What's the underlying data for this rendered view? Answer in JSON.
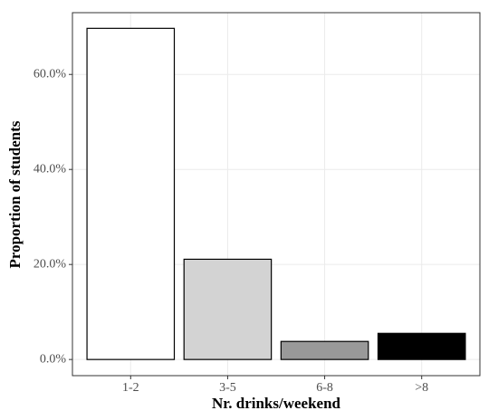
{
  "chart_data": {
    "type": "bar",
    "x_label": "Nr. drinks/weekend",
    "y_label": "Proportion of students",
    "categories": [
      "1-2",
      "3-5",
      "6-8",
      ">8"
    ],
    "values": [
      69.7,
      21.1,
      3.8,
      5.5
    ],
    "colors": [
      "#ffffff",
      "#d3d3d3",
      "#999999",
      "#000000"
    ],
    "ylim": [
      -3.4,
      73
    ],
    "yticks": [
      {
        "value": 0,
        "label": "0.0%"
      },
      {
        "value": 20,
        "label": "20.0%"
      },
      {
        "value": 40,
        "label": "40.0%"
      },
      {
        "value": 60,
        "label": "60.0%"
      }
    ],
    "grid": true
  }
}
